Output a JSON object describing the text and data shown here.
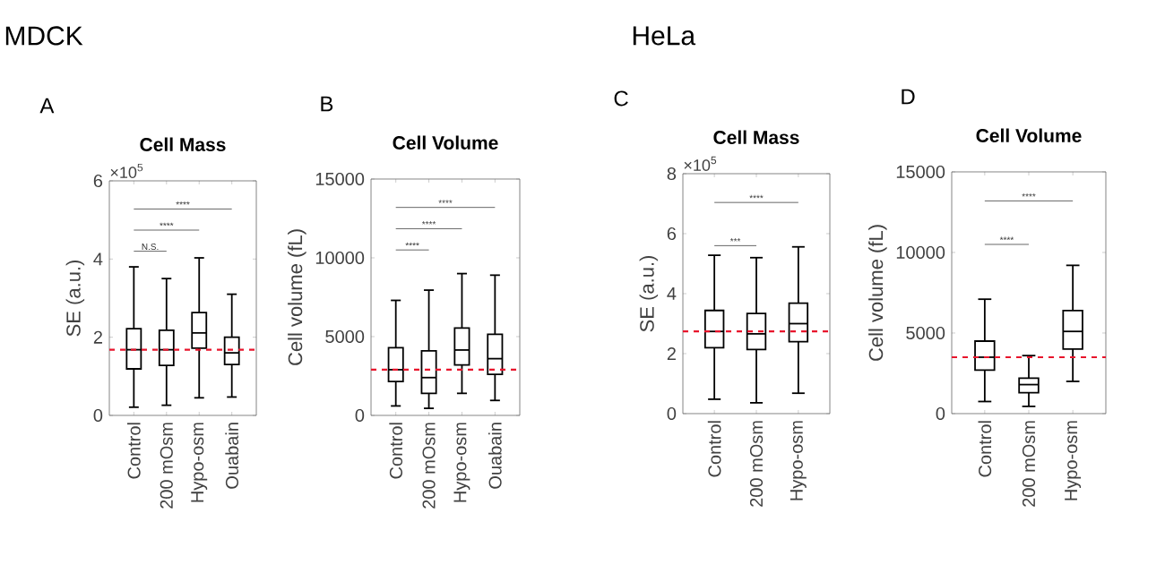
{
  "chart_data": [
    {
      "type": "box",
      "title": "Cell Mass",
      "ylabel": "SE (a.u.)",
      "categories": [
        "Control",
        "200 mOsm",
        "Hypo-osm",
        "Ouabain"
      ],
      "boxes": [
        {
          "low": 0.21,
          "q1": 1.19,
          "median": 1.68,
          "q3": 2.22,
          "high": 3.8
        },
        {
          "low": 0.26,
          "q1": 1.28,
          "median": 1.68,
          "q3": 2.18,
          "high": 3.5
        },
        {
          "low": 0.45,
          "q1": 1.72,
          "median": 2.11,
          "q3": 2.63,
          "high": 4.03
        },
        {
          "low": 0.47,
          "q1": 1.3,
          "median": 1.6,
          "q3": 2.0,
          "high": 3.1
        }
      ],
      "ylim": [
        0,
        6
      ],
      "yticks": [
        0,
        2,
        4,
        6
      ],
      "ref_lines": [
        {
          "axis": "y",
          "value": 1.68,
          "color": "#e8142c",
          "line_style": "dashed"
        }
      ],
      "annotations": [
        "MDCK",
        "A",
        "×10$^{5}$",
        "N.S.",
        "****",
        "****"
      ]
    },
    {
      "type": "box",
      "title": "Cell Volume",
      "ylabel": "Cell volume (fL)",
      "categories": [
        "Control",
        "200 mOsm",
        "Hypo-osm",
        "Ouabain"
      ],
      "boxes": [
        {
          "low": 600,
          "q1": 2150,
          "median": 2900,
          "q3": 4300,
          "high": 7300
        },
        {
          "low": 450,
          "q1": 1400,
          "median": 2400,
          "q3": 4100,
          "high": 7950
        },
        {
          "low": 1400,
          "q1": 3200,
          "median": 4150,
          "q3": 5550,
          "high": 9000
        },
        {
          "low": 950,
          "q1": 2600,
          "median": 3600,
          "q3": 5150,
          "high": 8900
        }
      ],
      "ylim": [
        0,
        15000
      ],
      "yticks": [
        0,
        5000,
        10000,
        15000
      ],
      "ref_lines": [
        {
          "axis": "y",
          "value": 2900,
          "color": "#e8142c",
          "line_style": "dashed"
        }
      ],
      "annotations": [
        "B",
        "****",
        "****",
        "****"
      ]
    },
    {
      "type": "box",
      "title": "Cell Mass",
      "ylabel": "SE (a.u.)",
      "categories": [
        "Control",
        "200 mOsm",
        "Hypo-osm"
      ],
      "boxes": [
        {
          "low": 0.48,
          "q1": 2.2,
          "median": 2.74,
          "q3": 3.44,
          "high": 5.28
        },
        {
          "low": 0.36,
          "q1": 2.14,
          "median": 2.66,
          "q3": 3.34,
          "high": 5.2
        },
        {
          "low": 0.68,
          "q1": 2.4,
          "median": 3.0,
          "q3": 3.68,
          "high": 5.56
        }
      ],
      "ylim": [
        0,
        8
      ],
      "yticks": [
        0,
        2,
        4,
        6,
        8
      ],
      "ref_lines": [
        {
          "axis": "y",
          "value": 2.74,
          "color": "#e8142c",
          "line_style": "dashed"
        }
      ],
      "annotations": [
        "HeLa",
        "C",
        "×10$^{5}$",
        "***",
        "****"
      ]
    },
    {
      "type": "box",
      "title": "Cell Volume",
      "ylabel": "Cell volume (fL)",
      "categories": [
        "Control",
        "200 mOsm",
        "Hypo-osm"
      ],
      "boxes": [
        {
          "low": 750,
          "q1": 2700,
          "median": 3500,
          "q3": 4500,
          "high": 7100
        },
        {
          "low": 450,
          "q1": 1300,
          "median": 1800,
          "q3": 2200,
          "high": 3600
        },
        {
          "low": 2000,
          "q1": 4000,
          "median": 5100,
          "q3": 6400,
          "high": 9200
        }
      ],
      "ylim": [
        0,
        15000
      ],
      "yticks": [
        0,
        5000,
        10000,
        15000
      ],
      "ref_lines": [
        {
          "axis": "y",
          "value": 3500,
          "color": "#e8142c",
          "line_style": "dashed"
        }
      ],
      "annotations": [
        "D",
        "****",
        "****"
      ]
    }
  ]
}
